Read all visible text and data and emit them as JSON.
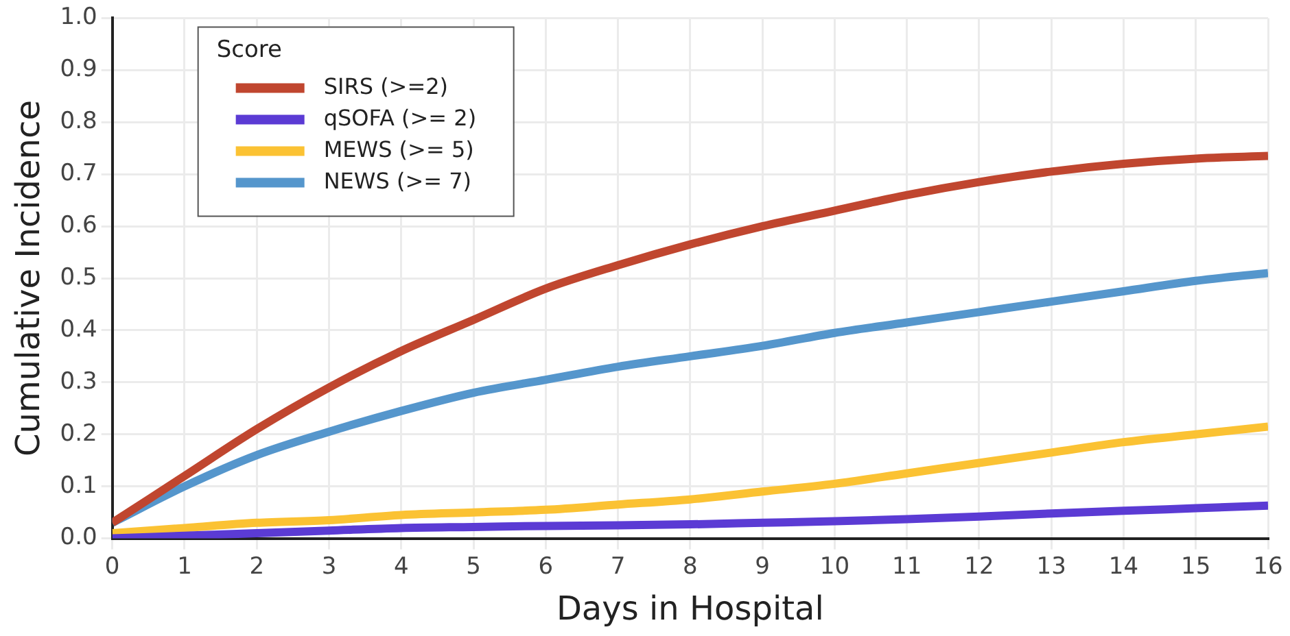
{
  "chart_data": {
    "type": "line",
    "xlabel": "Days in Hospital",
    "ylabel": "Cumulative Incidence",
    "legend_title": "Score",
    "legend": "top left",
    "grid": true,
    "marker": "none",
    "line_style": "solid",
    "x": [
      0,
      1,
      2,
      3,
      4,
      5,
      6,
      7,
      8,
      9,
      10,
      11,
      12,
      13,
      14,
      15,
      16
    ],
    "xlim": [
      0,
      16
    ],
    "xticks": [
      0,
      1,
      2,
      3,
      4,
      5,
      6,
      7,
      8,
      9,
      10,
      11,
      12,
      13,
      14,
      15,
      16
    ],
    "ylim": [
      0,
      1
    ],
    "yticks": [
      {
        "value": 0,
        "label": "0.0"
      },
      0.1,
      0.2,
      0.3,
      0.4,
      0.5,
      0.6,
      0.7,
      0.8,
      0.9,
      {
        "value": 1,
        "label": "1.0"
      }
    ],
    "series": [
      {
        "name": "SIRS (>=2)",
        "color": "#c0462f",
        "values": [
          0.03,
          0.12,
          0.21,
          0.29,
          0.36,
          0.42,
          0.48,
          0.525,
          0.565,
          0.6,
          0.63,
          0.66,
          0.685,
          0.705,
          0.72,
          0.73,
          0.735
        ]
      },
      {
        "name": "qSOFA (>= 2)",
        "color": "#5b3bd4",
        "values": [
          0.0,
          0.005,
          0.01,
          0.015,
          0.02,
          0.022,
          0.024,
          0.025,
          0.027,
          0.03,
          0.033,
          0.037,
          0.042,
          0.048,
          0.053,
          0.058,
          0.063
        ]
      },
      {
        "name": "MEWS (>= 5)",
        "color": "#fbc233",
        "values": [
          0.01,
          0.02,
          0.03,
          0.035,
          0.045,
          0.05,
          0.055,
          0.065,
          0.075,
          0.09,
          0.105,
          0.125,
          0.145,
          0.165,
          0.185,
          0.2,
          0.215
        ]
      },
      {
        "name": "NEWS (>= 7)",
        "color": "#5596cc",
        "values": [
          0.03,
          0.1,
          0.16,
          0.205,
          0.245,
          0.28,
          0.305,
          0.33,
          0.35,
          0.37,
          0.395,
          0.415,
          0.435,
          0.455,
          0.475,
          0.495,
          0.51
        ]
      }
    ]
  }
}
